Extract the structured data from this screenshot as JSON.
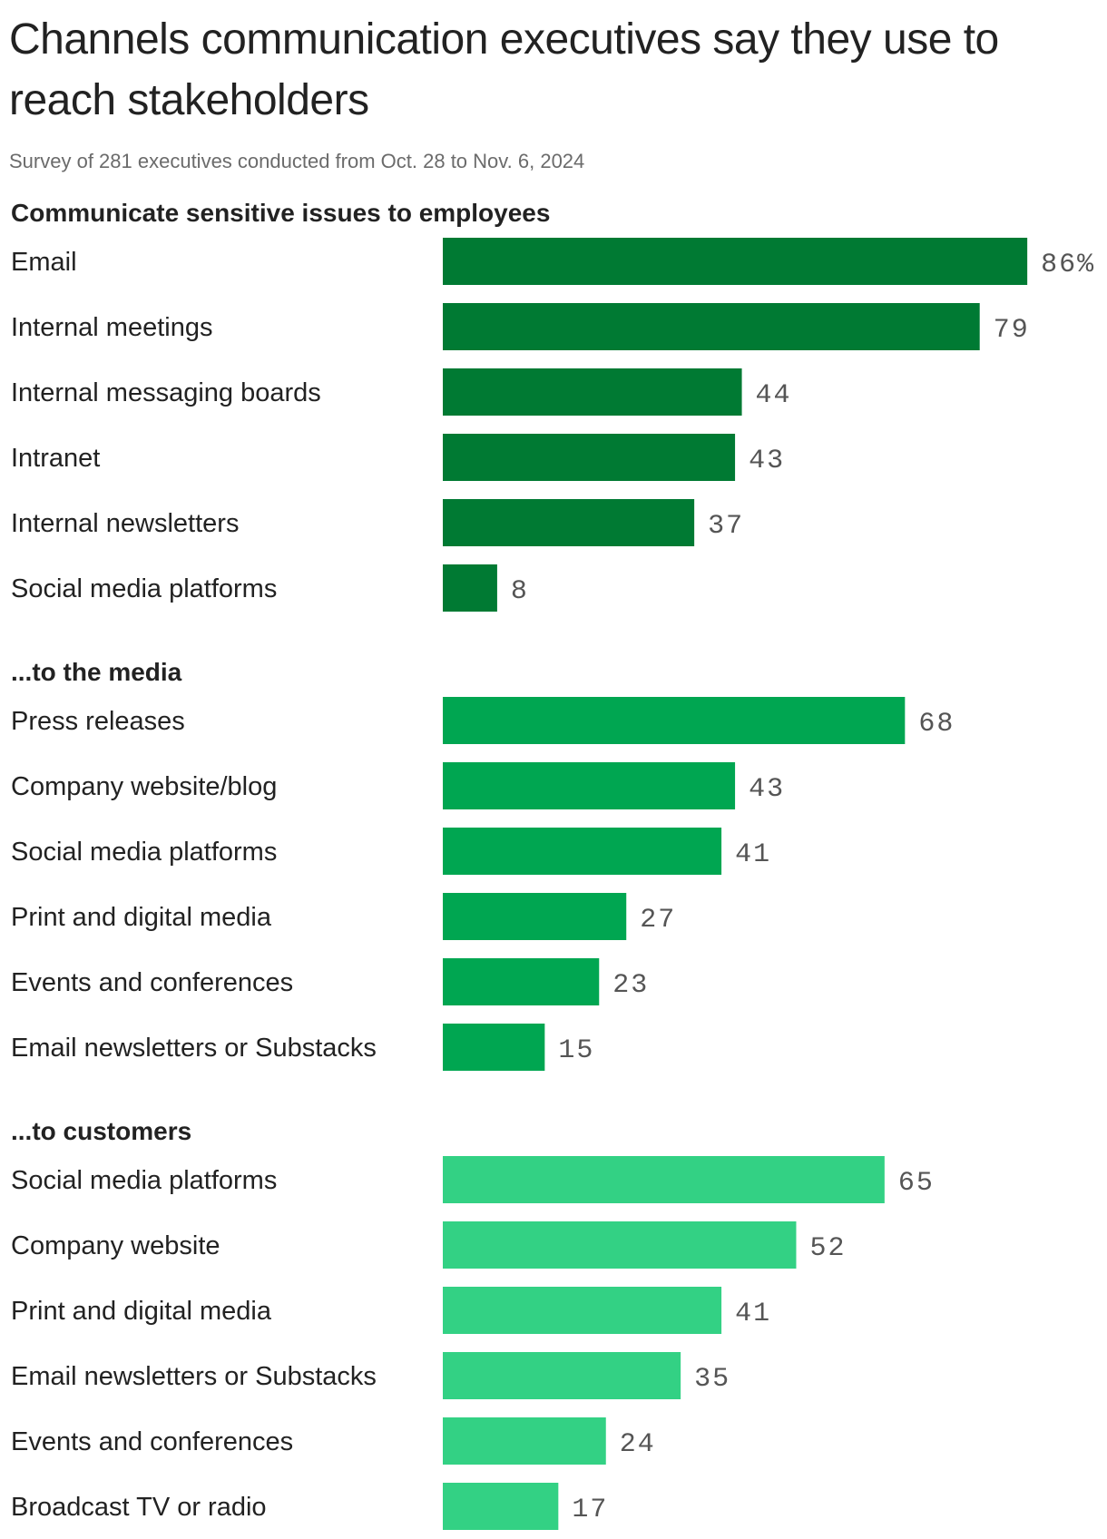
{
  "header": {
    "title": "Channels communication executives say they use to reach stakeholders",
    "subtitle": "Survey of 281 executives conducted from Oct. 28 to Nov. 6, 2024"
  },
  "chart_data": {
    "type": "bar",
    "orientation": "horizontal",
    "xlim": [
      0,
      86
    ],
    "grid": false,
    "legend": "none",
    "value_suffix_first": "%",
    "groups": [
      {
        "title": "Communicate sensitive issues to employees",
        "color": "#007a33",
        "categories": [
          "Email",
          "Internal meetings",
          "Internal messaging boards",
          "Intranet",
          "Internal newsletters",
          "Social media platforms"
        ],
        "values": [
          86,
          79,
          44,
          43,
          37,
          8
        ]
      },
      {
        "title": "...to the media",
        "color": "#00a651",
        "categories": [
          "Press releases",
          "Company website/blog",
          "Social media platforms",
          "Print and digital media",
          "Events and conferences",
          "Email newsletters or Substacks"
        ],
        "values": [
          68,
          43,
          41,
          27,
          23,
          15
        ]
      },
      {
        "title": "...to customers",
        "color": "#33d184",
        "categories": [
          "Social media platforms",
          "Company website",
          "Print and digital media",
          "Email newsletters or Substacks",
          "Events and conferences",
          "Broadcast TV or radio"
        ],
        "values": [
          65,
          52,
          41,
          35,
          24,
          17
        ]
      }
    ]
  }
}
